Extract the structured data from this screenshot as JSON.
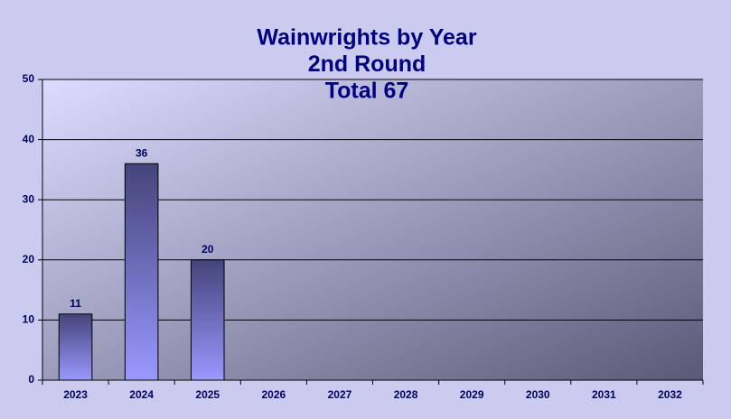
{
  "chart_data": {
    "type": "bar",
    "title": [
      "Wainwrights by Year",
      "2nd Round",
      "Total 67"
    ],
    "categories": [
      "2023",
      "2024",
      "2025",
      "2026",
      "2027",
      "2028",
      "2029",
      "2030",
      "2031",
      "2032"
    ],
    "values": [
      11,
      36,
      20,
      null,
      null,
      null,
      null,
      null,
      null,
      null
    ],
    "color": "#9999ff",
    "ylim": [
      0,
      50
    ],
    "yticks": [
      0,
      10,
      20,
      30,
      40,
      50
    ],
    "grid": true,
    "data_labels": true
  }
}
